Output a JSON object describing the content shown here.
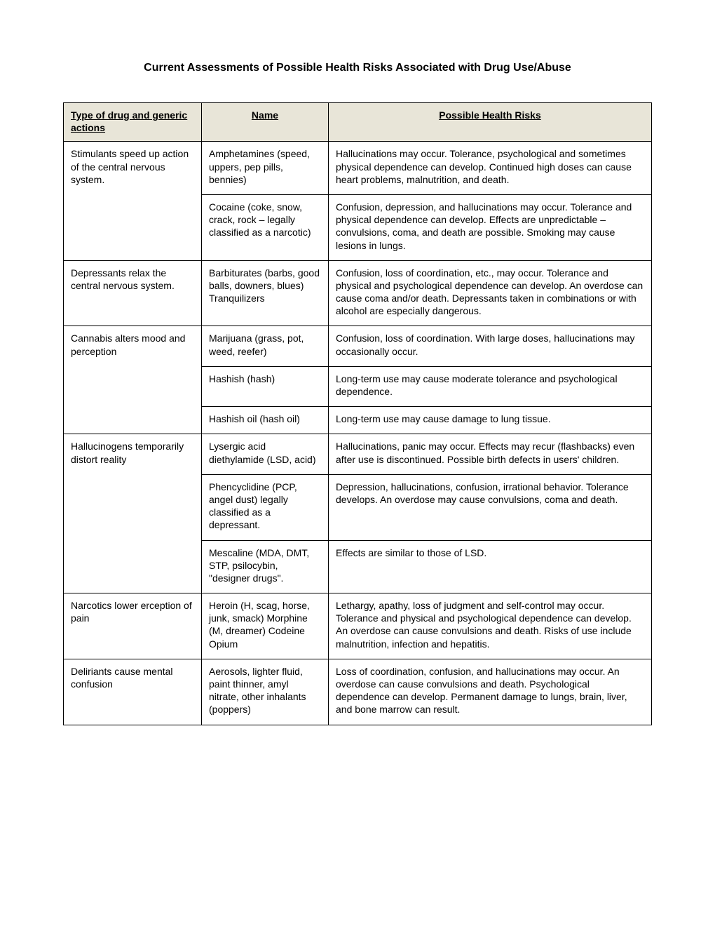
{
  "title": "Current Assessments of Possible Health Risks Associated with Drug Use/Abuse",
  "columns": {
    "type": "Type of drug and generic actions",
    "name": "Name",
    "risk": "Possible Health Risks"
  },
  "rows": [
    {
      "type": "Stimulants speed up action of the central nervous system.",
      "name": "Amphetamines (speed, uppers, pep pills, bennies)",
      "risk": "Hallucinations may occur. Tolerance, psychological and sometimes physical dependence can develop. Continued high doses can cause heart problems, malnutrition, and death.",
      "typeClass": "no-bottom"
    },
    {
      "type": "",
      "name": "Cocaine (coke, snow, crack, rock – legally classified as a narcotic)",
      "risk": "Confusion, depression, and hallucinations may occur. Tolerance and physical dependence can develop. Effects are unpredictable – convulsions, coma, and death are possible. Smoking may cause lesions in lungs.",
      "typeClass": "no-top"
    },
    {
      "type": "Depressants relax the central nervous system.",
      "name": "Barbiturates (barbs, good balls, downers, blues) Tranquilizers",
      "risk": "Confusion, loss of coordination, etc., may occur. Tolerance and physical and psychological dependence can develop. An overdose can cause coma and/or death. Depressants taken in combinations or with alcohol are especially dangerous.",
      "typeClass": ""
    },
    {
      "type": "Cannabis alters mood and perception",
      "name": "Marijuana (grass, pot, weed, reefer)",
      "risk": "Confusion, loss of coordination. With large doses, hallucinations may occasionally occur.",
      "typeClass": "no-bottom"
    },
    {
      "type": "",
      "name": "Hashish (hash)",
      "risk": "Long-term use may cause moderate tolerance and psychological dependence.",
      "typeClass": "no-tb"
    },
    {
      "type": "",
      "name": "Hashish oil (hash oil)",
      "risk": "Long-term use may cause damage to lung tissue.",
      "typeClass": "no-top"
    },
    {
      "type": "Hallucinogens temporarily distort reality",
      "name": "Lysergic acid diethylamide (LSD, acid)",
      "risk": "Hallucinations, panic may occur. Effects may recur (flashbacks) even after use is discontinued. Possible birth defects in users' children.",
      "typeClass": "no-bottom"
    },
    {
      "type": "",
      "name": "Phencyclidine (PCP, angel dust) legally classified as a depressant.",
      "risk": "Depression, hallucinations, confusion, irrational behavior. Tolerance develops. An overdose may cause convulsions, coma and death.",
      "typeClass": "no-tb"
    },
    {
      "type": "",
      "name": "Mescaline (MDA, DMT, STP, psilocybin, \"designer drugs\".",
      "risk": "Effects are similar to those of LSD.",
      "typeClass": "no-top"
    },
    {
      "type": "Narcotics lower erception of pain",
      "name": "Heroin (H, scag, horse, junk, smack) Morphine (M, dreamer) Codeine Opium",
      "risk": "Lethargy, apathy, loss of judgment and self-control may occur. Tolerance and physical and psychological dependence can develop. An overdose can cause convulsions and death. Risks of use include malnutrition, infection and hepatitis.",
      "typeClass": ""
    },
    {
      "type": "Deliriants cause mental confusion",
      "name": "Aerosols, lighter fluid, paint thinner, amyl nitrate, other inhalants (poppers)",
      "risk": "Loss of coordination, confusion, and hallucinations may occur. An overdose can cause convulsions and death. Psychological dependence can develop. Permanent damage to lungs, brain, liver, and bone marrow can result.",
      "typeClass": ""
    }
  ]
}
